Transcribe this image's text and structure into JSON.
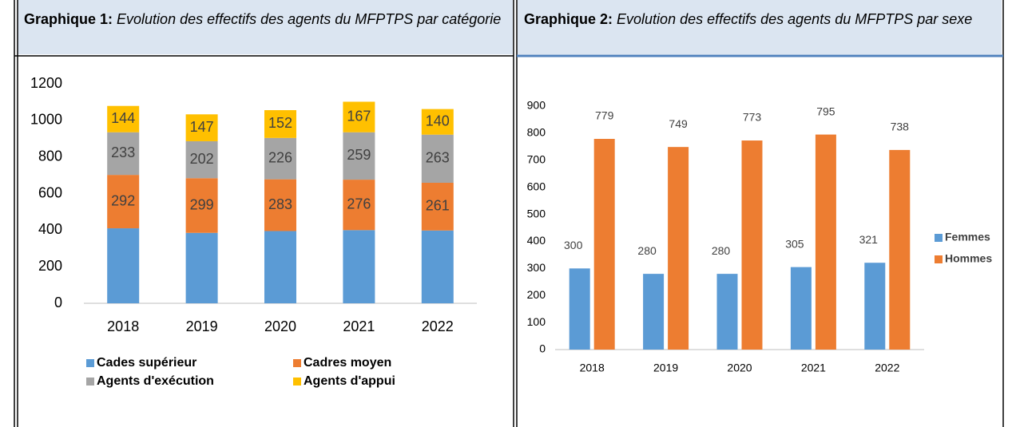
{
  "chart_data": [
    {
      "type": "stacked_bar",
      "title": "Graphique 1:",
      "subtitle": "Evolution des effectifs des agents du MFPTPS par catégorie",
      "categories": [
        "2018",
        "2019",
        "2020",
        "2021",
        "2022"
      ],
      "series": [
        {
          "name": "Cades supérieur",
          "color": "#5b9bd5",
          "values": [
            410,
            385,
            395,
            400,
            398
          ],
          "data_labels": false
        },
        {
          "name": "Cadres moyen",
          "color": "#ed7d31",
          "values": [
            292,
            299,
            283,
            276,
            261
          ],
          "data_labels": true
        },
        {
          "name": "Agents d'exécution",
          "color": "#a5a5a5",
          "values": [
            233,
            202,
            226,
            259,
            263
          ],
          "data_labels": true
        },
        {
          "name": "Agents d'appui",
          "color": "#ffc000",
          "values": [
            144,
            147,
            152,
            167,
            140
          ],
          "data_labels": true
        }
      ],
      "ylim": [
        0,
        1200
      ],
      "yticks": [
        0,
        200,
        400,
        600,
        800,
        1000,
        1200
      ],
      "grid": false,
      "legend": "bottom"
    },
    {
      "type": "grouped_bar",
      "title": "Graphique 2:",
      "subtitle": "Evolution des effectifs des agents du MFPTPS par sexe",
      "categories": [
        "2018",
        "2019",
        "2020",
        "2021",
        "2022"
      ],
      "series": [
        {
          "name": "Femmes",
          "color": "#5b9bd5",
          "values": [
            300,
            280,
            280,
            305,
            321
          ],
          "data_labels": true
        },
        {
          "name": "Hommes",
          "color": "#ed7d31",
          "values": [
            779,
            749,
            773,
            795,
            738
          ],
          "data_labels": true
        }
      ],
      "ylim": [
        0,
        900
      ],
      "yticks": [
        0,
        100,
        200,
        300,
        400,
        500,
        600,
        700,
        800,
        900
      ],
      "grid": false,
      "legend": "right"
    }
  ]
}
